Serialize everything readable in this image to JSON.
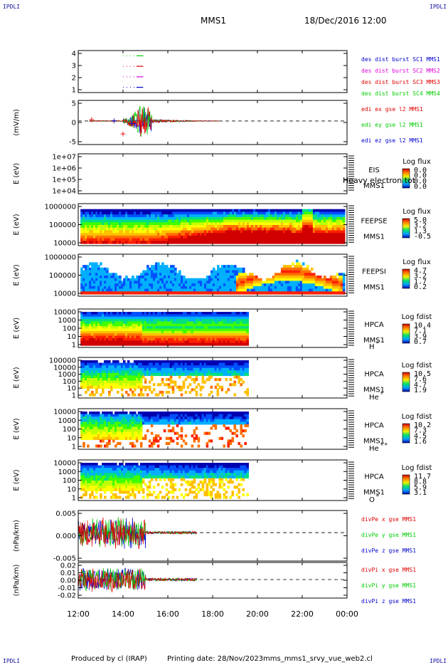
{
  "header": {
    "title": "MMS1",
    "date": "18/Dec/2016 12:00",
    "corner_tl": "IPDLI",
    "corner_tr": "IPDLI",
    "corner_bl": "IPDLI",
    "corner_br": "IPDLI"
  },
  "footer": {
    "produced_by": "Produced by cl (IRAP)",
    "printing_date": "Printing date: 28/Nov/2023",
    "filename": "mms_mms1_srvy_vue_web2.cl"
  },
  "colors": {
    "red": "#e00000",
    "green": "#00cc00",
    "blue": "#0000cc",
    "magenta": "#dd00dd",
    "axis": "#000000"
  },
  "chart_data": [
    {
      "id": "des",
      "type": "line",
      "ylabel": "",
      "yticks": [
        "1",
        "2",
        "3",
        "4"
      ],
      "ylim": [
        0.5,
        4.5
      ],
      "xlim_hours": [
        12,
        24
      ],
      "series": [
        {
          "name": "des dist burst SC1 MMS1",
          "color": "#0000cc",
          "y": 1
        },
        {
          "name": "des dist burst SC2 MMS2",
          "color": "#dd00dd",
          "y": 2
        },
        {
          "name": "des dist burst SC3 MMS3",
          "color": "#e00000",
          "y": 3
        },
        {
          "name": "des dist burst SC4 MMS4",
          "color": "#00cc00",
          "y": 4
        }
      ],
      "segments": [
        {
          "y": 1,
          "x": [
            14.0,
            14.9
          ],
          "color": "#0000cc"
        },
        {
          "y": 2,
          "x": [
            14.0,
            14.9
          ],
          "color": "#dd00dd"
        },
        {
          "y": 3,
          "x": [
            14.0,
            14.9
          ],
          "color": "#e00000"
        },
        {
          "y": 4,
          "x": [
            14.0,
            14.9
          ],
          "color": "#00cc00"
        }
      ]
    },
    {
      "id": "edi",
      "type": "line",
      "ylabel": "(mV/m)",
      "yticks": [
        "-5",
        "0",
        "5"
      ],
      "ylim": [
        -8,
        7
      ],
      "series": [
        {
          "name": "edi ex gse l2 MMS1",
          "color": "#e00000"
        },
        {
          "name": "edi ey gse l2 MMS1",
          "color": "#00cc00"
        },
        {
          "name": "edi ez gse l2 MMS1",
          "color": "#0000cc"
        }
      ],
      "active_range_hours": [
        12.5,
        18.3
      ]
    },
    {
      "id": "eis",
      "type": "heatmap",
      "ylabel": "E (eV)",
      "yticks": [
        "1e+04",
        "1e+05",
        "1e+06",
        "1e+07"
      ],
      "instrument": [
        "EIS",
        "MMS1"
      ],
      "overlay_text": "Heavy electron tot",
      "cbar_title": "Log flux",
      "cbar_ticks": [
        "0.0",
        "0.0",
        "0.0",
        "0.0"
      ]
    },
    {
      "id": "feeps_e",
      "type": "heatmap",
      "ylabel": "E (eV)",
      "yticks": [
        "10000",
        "100000",
        "1000000"
      ],
      "instrument": [
        "FEEPSE",
        "MMS1"
      ],
      "cbar_title": "Log flux",
      "cbar_ticks": [
        "5.0",
        "3.2",
        "1.3",
        "-0.5"
      ]
    },
    {
      "id": "feeps_i",
      "type": "heatmap",
      "ylabel": "E (eV)",
      "yticks": [
        "10000",
        "100000",
        "1000000"
      ],
      "instrument": [
        "FEEPSI",
        "MMS1"
      ],
      "cbar_title": "Log flux",
      "cbar_ticks": [
        "4.7",
        "3.2",
        "1.7",
        "0.2"
      ]
    },
    {
      "id": "hpca_h",
      "type": "heatmap",
      "ylabel": "E (eV)",
      "yticks": [
        "1",
        "10",
        "100",
        "1000",
        "10000"
      ],
      "instrument": [
        "HPCA",
        "MMS1"
      ],
      "species": "H",
      "charge": "+",
      "cbar_title": "Log fdist",
      "cbar_ticks": [
        "10.4",
        "7.1",
        "3.9",
        "0.7"
      ],
      "data_end_hours": 19.6
    },
    {
      "id": "hpca_he",
      "type": "heatmap",
      "ylabel": "E (eV)",
      "yticks": [
        "1",
        "10",
        "100",
        "1000",
        "10000",
        "100000"
      ],
      "instrument": [
        "HPCA",
        "MMS1"
      ],
      "species": "He",
      "charge": "+",
      "cbar_title": "Log fdist",
      "cbar_ticks": [
        "10.5",
        "7.6",
        "4.7",
        "1.9"
      ],
      "data_end_hours": 19.6
    },
    {
      "id": "hpca_he2",
      "type": "heatmap",
      "ylabel": "E (eV)",
      "yticks": [
        "1",
        "10",
        "100",
        "1000",
        "10000"
      ],
      "instrument": [
        "HPCA",
        "MMS1"
      ],
      "species": "He",
      "charge": "++",
      "cbar_title": "Log fdist",
      "cbar_ticks": [
        "10.2",
        "7.3",
        "4.5",
        "1.6"
      ],
      "data_end_hours": 19.6
    },
    {
      "id": "hpca_o",
      "type": "heatmap",
      "ylabel": "E (eV)",
      "yticks": [
        "1",
        "10",
        "100",
        "1000",
        "10000"
      ],
      "instrument": [
        "HPCA",
        "MMS1"
      ],
      "species": "O",
      "charge": "+",
      "cbar_title": "Log fdist",
      "cbar_ticks": [
        "11.7",
        "8.8",
        "5.9",
        "3.1"
      ],
      "data_end_hours": 19.6
    },
    {
      "id": "divpe",
      "type": "line",
      "ylabel": "(nPa/km)",
      "yticks": [
        "-0.005",
        "0.000",
        "0.005"
      ],
      "ylim": [
        -0.009,
        0.007
      ],
      "series": [
        {
          "name": "divPe x gse MMS1",
          "color": "#e00000"
        },
        {
          "name": "divPe y gse MMS1",
          "color": "#00cc00"
        },
        {
          "name": "divPe z gse MMS1",
          "color": "#0000cc"
        }
      ],
      "active_range_hours": [
        12.0,
        17.3
      ]
    },
    {
      "id": "divpi",
      "type": "line",
      "ylabel": "(nPa/km)",
      "yticks": [
        "-0.02",
        "-0.01",
        "0.00",
        "0.01",
        "0.02"
      ],
      "ylim": [
        -0.026,
        0.024
      ],
      "series": [
        {
          "name": "divPi x gse MMS1",
          "color": "#e00000"
        },
        {
          "name": "divPi y gse MMS1",
          "color": "#00cc00"
        },
        {
          "name": "divPi z gse MMS1",
          "color": "#0000cc"
        }
      ],
      "active_range_hours": [
        12.0,
        17.3
      ]
    }
  ],
  "xaxis": {
    "ticks": [
      "12:00",
      "14:00",
      "16:00",
      "18:00",
      "20:00",
      "22:00",
      "00:00"
    ],
    "range_hours": [
      12,
      24
    ]
  }
}
